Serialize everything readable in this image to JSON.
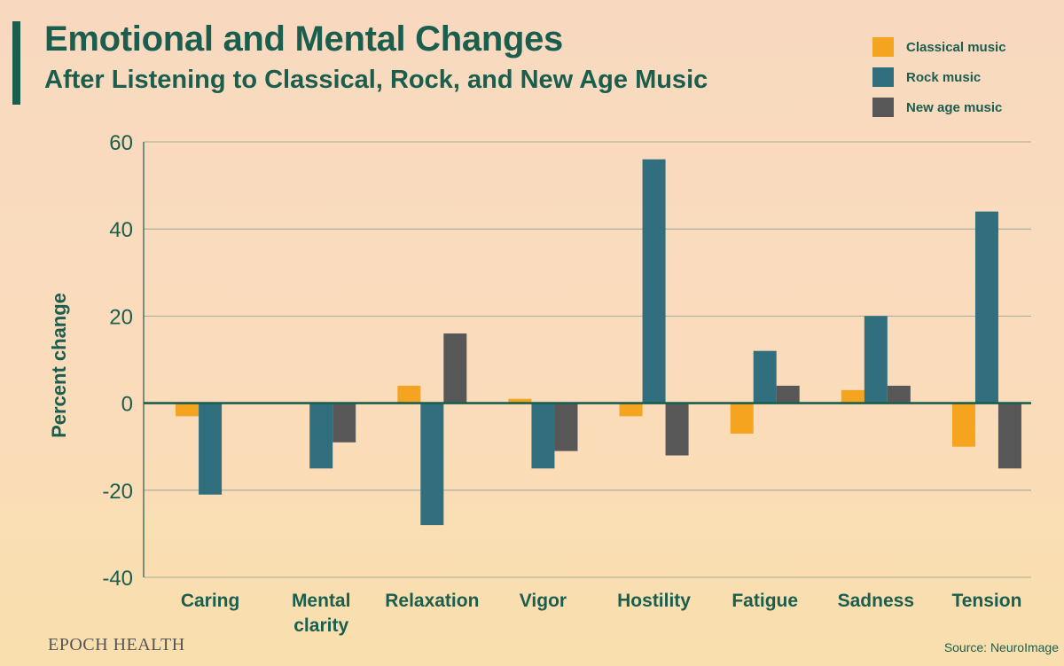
{
  "header": {
    "title": "Emotional and Mental Changes",
    "subtitle": "After Listening to Classical, Rock, and New Age Music"
  },
  "legend": [
    {
      "label": "Classical music",
      "color": "#f4a41f"
    },
    {
      "label": "Rock music",
      "color": "#326f7e"
    },
    {
      "label": "New age music",
      "color": "#575757"
    }
  ],
  "footer": {
    "brand": "EPOCH HEALTH",
    "source": "Source: NeuroImage"
  },
  "chart_data": {
    "type": "bar",
    "title": "Emotional and Mental Changes",
    "subtitle": "After Listening to Classical, Rock, and New Age Music",
    "xlabel": "",
    "ylabel": "Percent change",
    "ylim": [
      -40,
      60
    ],
    "yticks": [
      -40,
      -20,
      0,
      20,
      40,
      60
    ],
    "grid": true,
    "legend_position": "top-right",
    "categories": [
      "Caring",
      "Mental\nclarity",
      "Relaxation",
      "Vigor",
      "Hostility",
      "Fatigue",
      "Sadness",
      "Tension"
    ],
    "series": [
      {
        "name": "Classical music",
        "color": "#f4a41f",
        "values": [
          -3,
          0,
          4,
          1,
          -3,
          -7,
          3,
          -10
        ]
      },
      {
        "name": "Rock music",
        "color": "#326f7e",
        "values": [
          -21,
          -15,
          -28,
          -15,
          56,
          12,
          20,
          44
        ]
      },
      {
        "name": "New age music",
        "color": "#575757",
        "values": [
          0,
          -9,
          16,
          -11,
          -12,
          4,
          4,
          -15
        ]
      }
    ]
  }
}
